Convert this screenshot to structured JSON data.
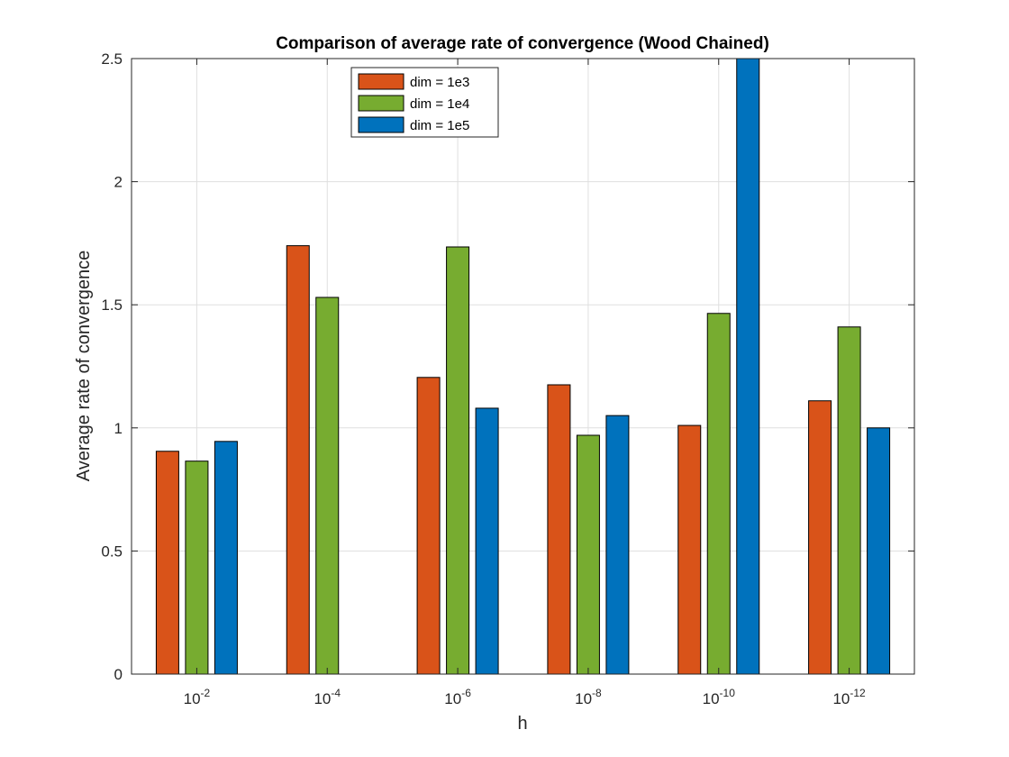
{
  "chart_data": {
    "type": "bar",
    "title": "Comparison of average rate of convergence (Wood Chained)",
    "xlabel": "h",
    "ylabel": "Average rate of convergence",
    "categories": [
      {
        "base": "10",
        "exp": "-2"
      },
      {
        "base": "10",
        "exp": "-4"
      },
      {
        "base": "10",
        "exp": "-6"
      },
      {
        "base": "10",
        "exp": "-8"
      },
      {
        "base": "10",
        "exp": "-10"
      },
      {
        "base": "10",
        "exp": "-12"
      }
    ],
    "series": [
      {
        "name": "dim = 1e3",
        "color": "#D95319",
        "values": [
          0.905,
          1.74,
          1.205,
          1.175,
          1.01,
          1.11
        ]
      },
      {
        "name": "dim = 1e4",
        "color": "#77AC30",
        "values": [
          0.865,
          1.53,
          1.735,
          0.97,
          1.465,
          1.41
        ]
      },
      {
        "name": "dim = 1e5",
        "color": "#0072BD",
        "values": [
          0.945,
          null,
          1.08,
          1.05,
          2.5,
          1.0
        ]
      }
    ],
    "ylim": [
      0,
      2.5
    ],
    "yticks": [
      {
        "value": 0,
        "label": "0"
      },
      {
        "value": 0.5,
        "label": "0.5"
      },
      {
        "value": 1,
        "label": "1"
      },
      {
        "value": 1.5,
        "label": "1.5"
      },
      {
        "value": 2,
        "label": "2"
      },
      {
        "value": 2.5,
        "label": "2.5"
      }
    ],
    "grid": true,
    "legend_position": "top-left"
  }
}
